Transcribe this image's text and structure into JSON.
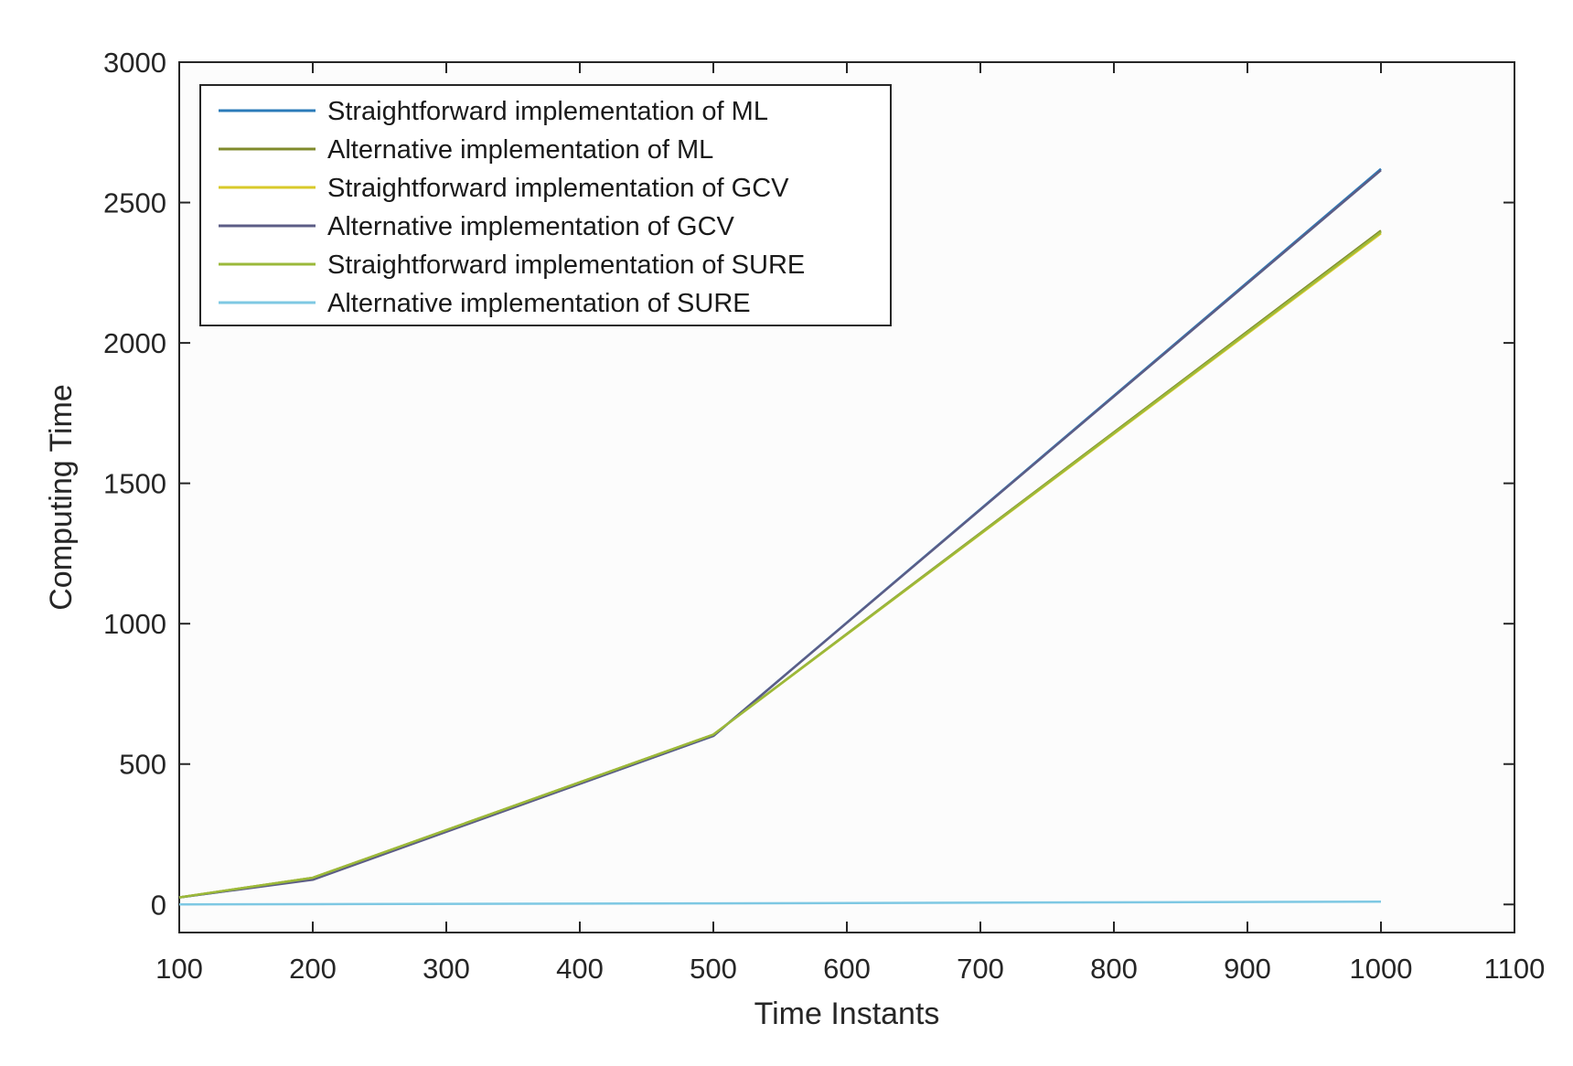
{
  "chart_data": {
    "type": "line",
    "title": "",
    "xlabel": "Time Instants",
    "ylabel": "Computing Time",
    "xlim": [
      100,
      1100
    ],
    "ylim": [
      -100,
      3000
    ],
    "xticks": [
      100,
      200,
      300,
      400,
      500,
      600,
      700,
      800,
      900,
      1000,
      1100
    ],
    "yticks": [
      0,
      500,
      1000,
      1500,
      2000,
      2500,
      3000
    ],
    "grid": false,
    "legend_position": "top-left",
    "x": [
      100,
      200,
      500,
      1000
    ],
    "series": [
      {
        "name": "Straightforward implementation of ML",
        "color": "#2b7bb9",
        "values": [
          25,
          90,
          600,
          2620
        ]
      },
      {
        "name": "Alternative implementation of ML",
        "color": "#7f8a2b",
        "values": [
          25,
          95,
          605,
          2400
        ]
      },
      {
        "name": "Straightforward implementation of GCV",
        "color": "#d8c92a",
        "values": [
          25,
          95,
          605,
          2390
        ]
      },
      {
        "name": "Alternative implementation of GCV",
        "color": "#5c5d86",
        "values": [
          25,
          88,
          600,
          2615
        ]
      },
      {
        "name": "Straightforward implementation of SURE",
        "color": "#9bb93a",
        "values": [
          25,
          95,
          605,
          2395
        ]
      },
      {
        "name": "Alternative implementation of SURE",
        "color": "#7ec8e3",
        "values": [
          0,
          1,
          4,
          10
        ]
      }
    ]
  }
}
